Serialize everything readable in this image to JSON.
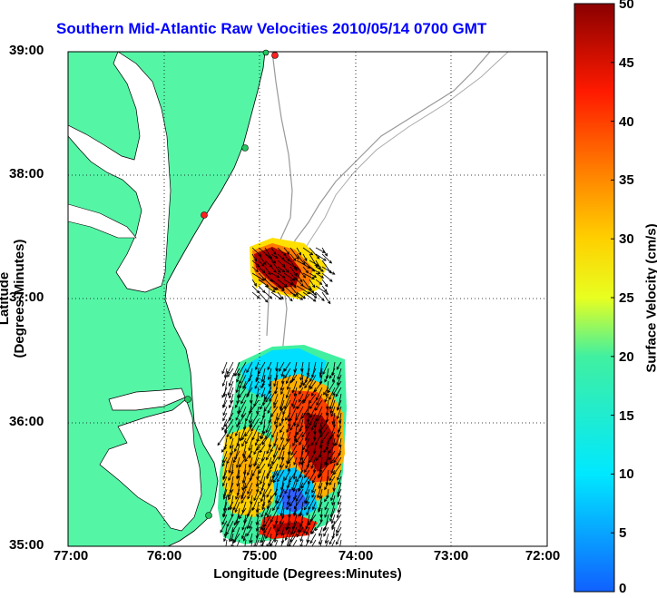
{
  "title": "Southern Mid-Atlantic Raw Velocities 2010/05/14 0700 GMT",
  "x_axis": {
    "label": "Longitude (Degrees:Minutes)",
    "ticks": [
      "77:00",
      "76:00",
      "75:00",
      "74:00",
      "73:00",
      "72:00"
    ]
  },
  "y_axis": {
    "label": "Latitude (Degrees:Minutes)",
    "ticks": [
      "39:00",
      "38:00",
      "37:00",
      "36:00",
      "35:00"
    ]
  },
  "colorbar": {
    "label": "Surface Velocity (cm/s)",
    "ticks": [
      "50",
      "45",
      "40",
      "35",
      "30",
      "25",
      "20",
      "15",
      "10",
      "5",
      "0"
    ],
    "min": 0,
    "max": 50
  },
  "colors": {
    "land": "#55f5a6",
    "title": "#0000ff",
    "station_green": "#22c55e",
    "station_red": "#ff2020"
  }
}
